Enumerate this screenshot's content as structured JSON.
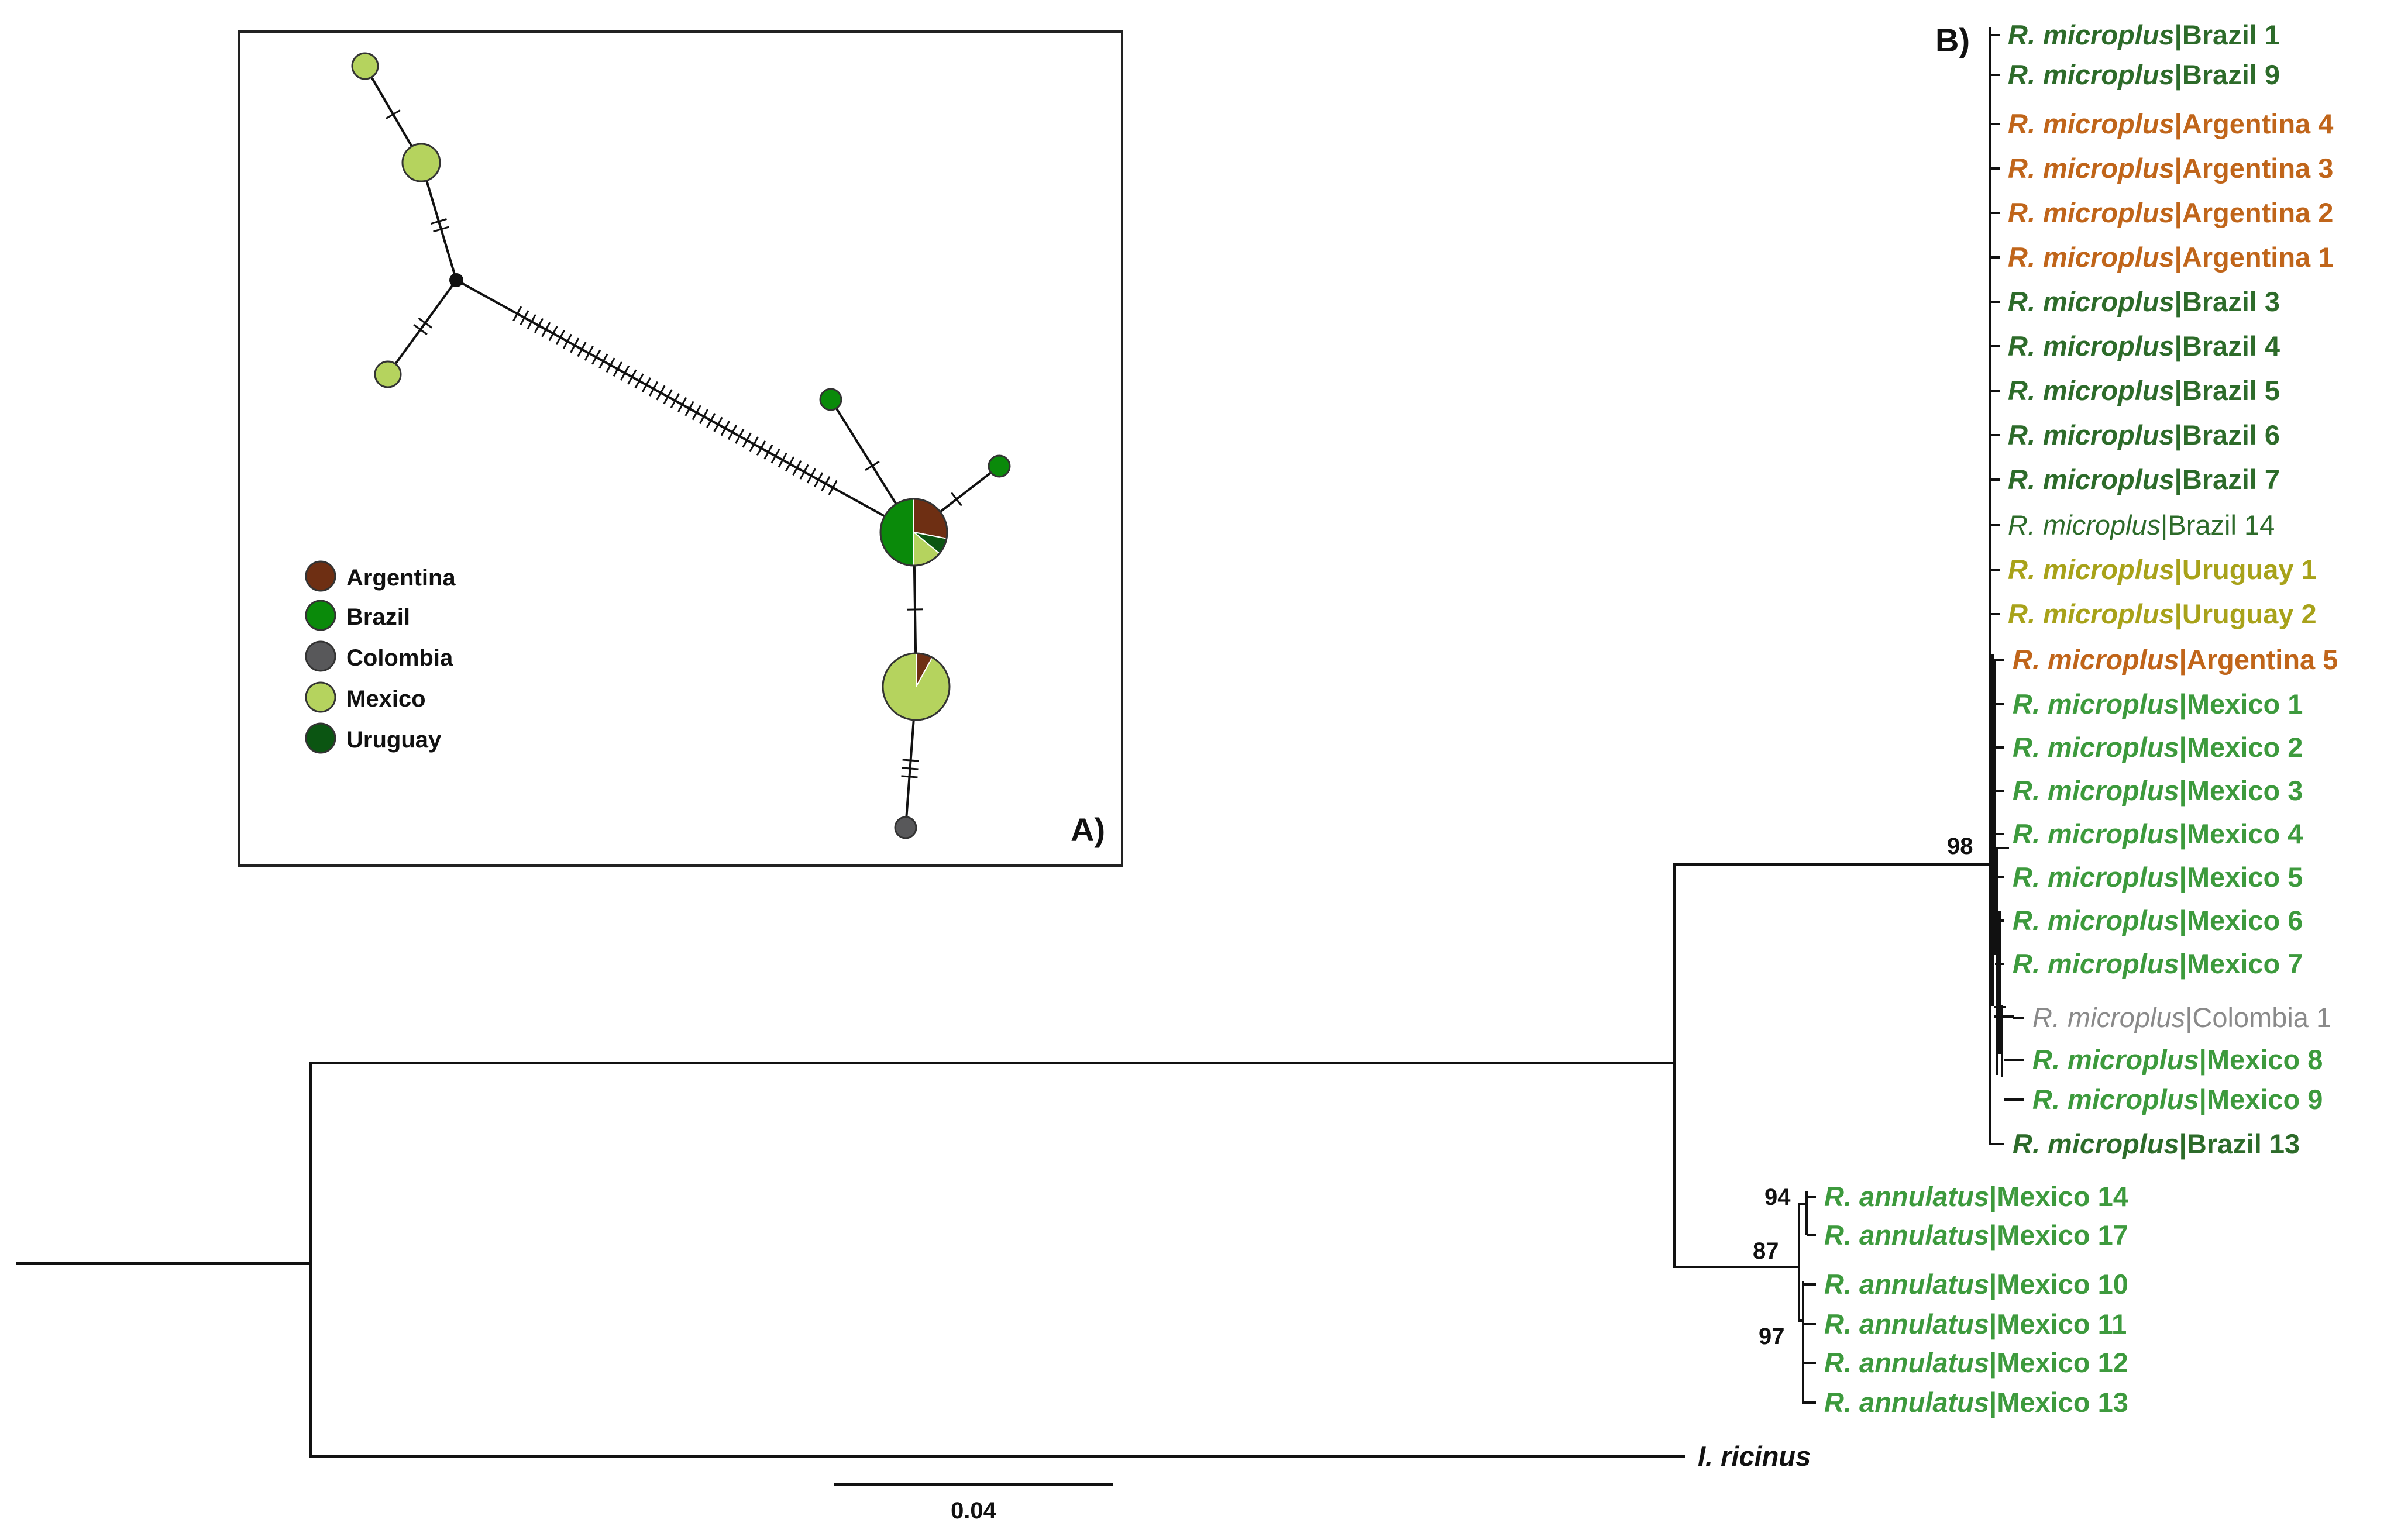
{
  "panel_a": {
    "label": "A)",
    "legend": [
      {
        "name": "Argentina",
        "color": "#6e2f13"
      },
      {
        "name": "Brazil",
        "color": "#0a8a0a"
      },
      {
        "name": "Colombia",
        "color": "#58585a"
      },
      {
        "name": "Mexico",
        "color": "#b5d35e"
      },
      {
        "name": "Uruguay",
        "color": "#0b5512"
      }
    ],
    "network": {
      "nodes": [
        {
          "id": "n1",
          "kind": "haplotype",
          "size": "small",
          "composition": [
            {
              "country": "Mexico",
              "share": 1
            }
          ]
        },
        {
          "id": "n2",
          "kind": "haplotype",
          "size": "medium",
          "composition": [
            {
              "country": "Mexico",
              "share": 1
            }
          ]
        },
        {
          "id": "n3",
          "kind": "median-vector",
          "size": "tiny",
          "composition": []
        },
        {
          "id": "n4",
          "kind": "haplotype",
          "size": "small",
          "composition": [
            {
              "country": "Mexico",
              "share": 1
            }
          ]
        },
        {
          "id": "n5",
          "kind": "haplotype",
          "size": "large",
          "composition": [
            {
              "country": "Argentina",
              "share": 0.28
            },
            {
              "country": "Uruguay",
              "share": 0.08
            },
            {
              "country": "Mexico",
              "share": 0.14
            },
            {
              "country": "Brazil",
              "share": 0.5
            }
          ]
        },
        {
          "id": "n6",
          "kind": "haplotype",
          "size": "tiny",
          "composition": [
            {
              "country": "Brazil",
              "share": 1
            }
          ]
        },
        {
          "id": "n7",
          "kind": "haplotype",
          "size": "tiny",
          "composition": [
            {
              "country": "Brazil",
              "share": 1
            }
          ]
        },
        {
          "id": "n8",
          "kind": "haplotype",
          "size": "large",
          "composition": [
            {
              "country": "Argentina",
              "share": 0.08
            },
            {
              "country": "Mexico",
              "share": 0.92
            }
          ]
        },
        {
          "id": "n9",
          "kind": "haplotype",
          "size": "tiny",
          "composition": [
            {
              "country": "Colombia",
              "share": 1
            }
          ]
        }
      ],
      "edges": [
        {
          "from": "n1",
          "to": "n2",
          "mutations": 1
        },
        {
          "from": "n2",
          "to": "n3",
          "mutations": 2
        },
        {
          "from": "n3",
          "to": "n4",
          "mutations": 2
        },
        {
          "from": "n3",
          "to": "n5",
          "mutations": 45
        },
        {
          "from": "n5",
          "to": "n6",
          "mutations": 1
        },
        {
          "from": "n5",
          "to": "n7",
          "mutations": 1
        },
        {
          "from": "n5",
          "to": "n8",
          "mutations": 1
        },
        {
          "from": "n8",
          "to": "n9",
          "mutations": 3
        }
      ]
    }
  },
  "panel_b": {
    "label": "B)",
    "scale_bar": "0.04",
    "bootstrap": [
      "98",
      "94",
      "87",
      "97"
    ],
    "colors": {
      "Brazil": "#2d6b2a",
      "Argentina": "#c0651a",
      "Uruguay": "#a8a21a",
      "Mexico": "#3d9a3d",
      "Colombia": "#8a8a8a",
      "Outgroup": "#111111"
    },
    "taxa": [
      {
        "species": "R. microplus",
        "sep": "|",
        "locality": "Brazil 1",
        "group": "Brazil",
        "bold": true
      },
      {
        "species": "R. microplus",
        "sep": "|",
        "locality": "Brazil 9",
        "group": "Brazil",
        "bold": true
      },
      {
        "species": "R. microplus",
        "sep": "|",
        "locality": "Argentina 4",
        "group": "Argentina",
        "bold": true
      },
      {
        "species": "R. microplus",
        "sep": "|",
        "locality": "Argentina 3",
        "group": "Argentina",
        "bold": true
      },
      {
        "species": "R. microplus",
        "sep": "|",
        "locality": "Argentina 2",
        "group": "Argentina",
        "bold": true
      },
      {
        "species": "R. microplus",
        "sep": "|",
        "locality": "Argentina 1",
        "group": "Argentina",
        "bold": true
      },
      {
        "species": "R. microplus",
        "sep": "|",
        "locality": "Brazil 3",
        "group": "Brazil",
        "bold": true
      },
      {
        "species": "R. microplus",
        "sep": "|",
        "locality": "Brazil 4",
        "group": "Brazil",
        "bold": true
      },
      {
        "species": "R. microplus",
        "sep": "|",
        "locality": "Brazil 5",
        "group": "Brazil",
        "bold": true
      },
      {
        "species": "R. microplus",
        "sep": "|",
        "locality": "Brazil 6",
        "group": "Brazil",
        "bold": true
      },
      {
        "species": "R. microplus",
        "sep": "|",
        "locality": "Brazil 7",
        "group": "Brazil",
        "bold": true
      },
      {
        "species": "R. microplus",
        "sep": "|",
        "locality": "Brazil 14",
        "group": "Brazil",
        "bold": false
      },
      {
        "species": "R. microplus",
        "sep": "|",
        "locality": "Uruguay 1",
        "group": "Uruguay",
        "bold": true
      },
      {
        "species": "R. microplus",
        "sep": "|",
        "locality": "Uruguay 2",
        "group": "Uruguay",
        "bold": true
      },
      {
        "species": "R. microplus",
        "sep": "|",
        "locality": "Argentina 5",
        "group": "Argentina",
        "bold": true
      },
      {
        "species": "R. microplus",
        "sep": "|",
        "locality": "Mexico 1",
        "group": "Mexico",
        "bold": true
      },
      {
        "species": "R. microplus",
        "sep": "|",
        "locality": "Mexico 2",
        "group": "Mexico",
        "bold": true
      },
      {
        "species": "R. microplus",
        "sep": "|",
        "locality": "Mexico 3",
        "group": "Mexico",
        "bold": true
      },
      {
        "species": "R. microplus",
        "sep": "|",
        "locality": "Mexico 4",
        "group": "Mexico",
        "bold": true
      },
      {
        "species": "R. microplus",
        "sep": "|",
        "locality": "Mexico 5",
        "group": "Mexico",
        "bold": true
      },
      {
        "species": "R. microplus",
        "sep": "|",
        "locality": "Mexico 6",
        "group": "Mexico",
        "bold": true
      },
      {
        "species": "R. microplus",
        "sep": "|",
        "locality": "Mexico 7",
        "group": "Mexico",
        "bold": true
      },
      {
        "species": "R. microplus",
        "sep": "|",
        "locality": "Colombia 1",
        "group": "Colombia",
        "bold": false
      },
      {
        "species": "R. microplus",
        "sep": "|",
        "locality": "Mexico 8",
        "group": "Mexico",
        "bold": true
      },
      {
        "species": "R. microplus",
        "sep": "|",
        "locality": "Mexico 9",
        "group": "Mexico",
        "bold": true
      },
      {
        "species": "R. microplus",
        "sep": "|",
        "locality": "Brazil 13",
        "group": "Brazil",
        "bold": true
      },
      {
        "species": "R. annulatus",
        "sep": "|",
        "locality": "Mexico 14",
        "group": "Mexico",
        "bold": true
      },
      {
        "species": "R. annulatus",
        "sep": "|",
        "locality": "Mexico 17",
        "group": "Mexico",
        "bold": true
      },
      {
        "species": "R. annulatus",
        "sep": "|",
        "locality": "Mexico 10",
        "group": "Mexico",
        "bold": true
      },
      {
        "species": "R. annulatus",
        "sep": "|",
        "locality": "Mexico 11",
        "group": "Mexico",
        "bold": true
      },
      {
        "species": "R. annulatus",
        "sep": "|",
        "locality": "Mexico 12",
        "group": "Mexico",
        "bold": true
      },
      {
        "species": "R. annulatus",
        "sep": "|",
        "locality": "Mexico 13",
        "group": "Mexico",
        "bold": true
      },
      {
        "species": "I. ricinus",
        "sep": "",
        "locality": "",
        "group": "Outgroup",
        "bold": true
      }
    ]
  }
}
